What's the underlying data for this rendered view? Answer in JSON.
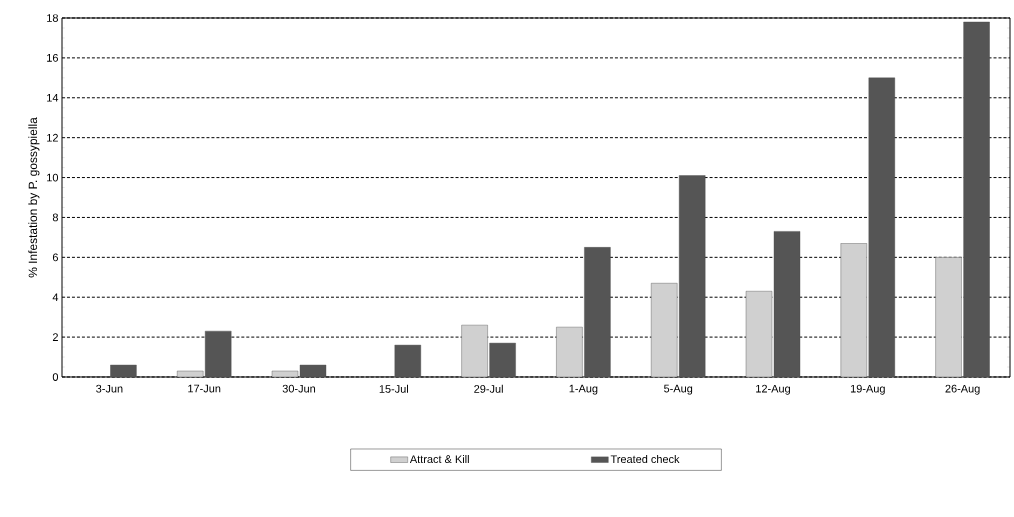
{
  "chart_data": {
    "type": "bar",
    "ylabel": "% Infestation by P. gossypiella",
    "categories": [
      "3-Jun",
      "17-Jun",
      "30-Jun",
      "15-Jul",
      "29-Jul",
      "1-Aug",
      "5-Aug",
      "12-Aug",
      "19-Aug",
      "26-Aug"
    ],
    "series": [
      {
        "name": "Attract & Kill",
        "color": "#d0d0d0",
        "values": [
          0,
          0.3,
          0.3,
          0,
          2.6,
          2.5,
          4.7,
          4.3,
          6.7,
          6.0
        ]
      },
      {
        "name": "Treated check",
        "color": "#555555",
        "values": [
          0.6,
          2.3,
          0.6,
          1.6,
          1.7,
          6.5,
          10.1,
          7.3,
          15.0,
          17.8
        ]
      }
    ],
    "ylim": [
      0,
      18
    ],
    "yticks": [
      0,
      2,
      4,
      6,
      8,
      10,
      12,
      14,
      16,
      18
    ],
    "grid": "y",
    "legend": "bottom"
  }
}
